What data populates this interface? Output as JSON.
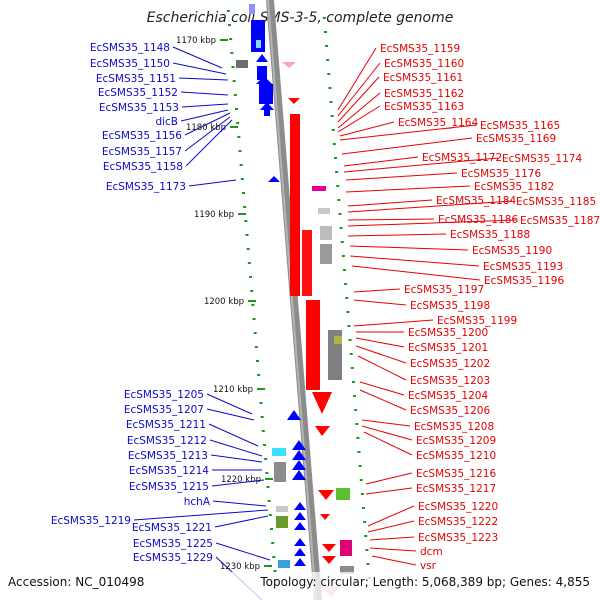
{
  "title": "Escherichia coli SMS-3-5, complete genome",
  "footer": {
    "accession": "Accession: NC_010498",
    "topology": "Topology: circular; Length: 5,068,389 bp; Genes: 4,855"
  },
  "ticks": [
    "1170 kbp",
    "1180 kbp",
    "1190 kbp",
    "1200 kbp",
    "1210 kbp",
    "1220 kbp",
    "1230 kbp"
  ],
  "left_labels": [
    "EcSMS35_1148",
    "EcSMS35_1150",
    "EcSMS35_1151",
    "EcSMS35_1152",
    "EcSMS35_1153",
    "dicB",
    "EcSMS35_1156",
    "EcSMS35_1157",
    "EcSMS35_1158",
    "EcSMS35_1173",
    "EcSMS35_1205",
    "EcSMS35_1207",
    "EcSMS35_1211",
    "EcSMS35_1212",
    "EcSMS35_1213",
    "EcSMS35_1214",
    "EcSMS35_1215",
    "hchA",
    "EcSMS35_1219",
    "EcSMS35_1221",
    "EcSMS35_1225",
    "EcSMS35_1229"
  ],
  "right_labels": [
    "EcSMS35_1159",
    "EcSMS35_1160",
    "EcSMS35_1161",
    "EcSMS35_1162",
    "EcSMS35_1163",
    "EcSMS35_1164",
    "EcSMS35_1165",
    "EcSMS35_1169",
    "EcSMS35_1172",
    "EcSMS35_1174",
    "EcSMS35_1176",
    "EcSMS35_1182",
    "EcSMS35_1184",
    "EcSMS35_1185",
    "EcSMS35_1186",
    "EcSMS35_1187",
    "EcSMS35_1188",
    "EcSMS35_1190",
    "EcSMS35_1193",
    "EcSMS35_1196",
    "EcSMS35_1197",
    "EcSMS35_1198",
    "EcSMS35_1199",
    "EcSMS35_1200",
    "EcSMS35_1201",
    "EcSMS35_1202",
    "EcSMS35_1203",
    "EcSMS35_1204",
    "EcSMS35_1206",
    "EcSMS35_1208",
    "EcSMS35_1209",
    "EcSMS35_1210",
    "EcSMS35_1216",
    "EcSMS35_1217",
    "EcSMS35_1220",
    "EcSMS35_1222",
    "EcSMS35_1223",
    "dcm",
    "vsr"
  ],
  "colors": {
    "forward_strand": "#0000ff",
    "reverse_strand": "#ff0000",
    "backbone": "#8c8c8c",
    "tick_mark": "#1a9a1a",
    "label_blue": "#0a0ac8",
    "label_red": "#e60000"
  }
}
